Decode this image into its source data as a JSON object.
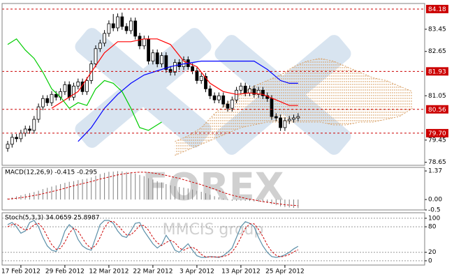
{
  "chart_data": [
    {
      "type": "candlestick",
      "up_color": "#ffffff",
      "down_color": "#000000",
      "xlim": [
        -1.27,
        94.76
      ],
      "ylim": [
        78.54,
        84.38
      ],
      "yticks": [
        83.45,
        82.65,
        81.05,
        79.45,
        78.65
      ],
      "levels": [
        84.18,
        81.93,
        80.56,
        {
          "value": 79.7,
          "label": "79.70"
        }
      ],
      "level_color": "#cc0000",
      "ohlc": [
        [
          79.15,
          79.42,
          79.03,
          79.3
        ],
        [
          79.3,
          79.67,
          79.18,
          79.55
        ],
        [
          79.55,
          79.67,
          79.38,
          79.5
        ],
        [
          79.5,
          79.82,
          79.38,
          79.7
        ],
        [
          79.7,
          79.97,
          79.58,
          79.85
        ],
        [
          79.85,
          79.97,
          79.68,
          79.8
        ],
        [
          79.8,
          80.32,
          79.68,
          80.2
        ],
        [
          80.2,
          80.77,
          80.08,
          80.65
        ],
        [
          80.65,
          81.07,
          80.53,
          80.95
        ],
        [
          80.95,
          81.07,
          80.68,
          80.8
        ],
        [
          80.8,
          81.22,
          80.68,
          81.1
        ],
        [
          81.1,
          81.22,
          80.88,
          81.0
        ],
        [
          81.0,
          81.32,
          80.88,
          81.2
        ],
        [
          81.2,
          81.57,
          81.08,
          81.45
        ],
        [
          81.45,
          81.57,
          80.88,
          81.0
        ],
        [
          81.0,
          81.52,
          80.88,
          81.4
        ],
        [
          81.4,
          81.67,
          81.28,
          81.55
        ],
        [
          81.55,
          81.67,
          81.08,
          81.2
        ],
        [
          81.2,
          81.72,
          81.08,
          81.6
        ],
        [
          81.6,
          82.32,
          81.48,
          82.2
        ],
        [
          82.2,
          82.87,
          82.08,
          82.75
        ],
        [
          82.75,
          83.07,
          82.63,
          82.95
        ],
        [
          82.95,
          83.42,
          82.83,
          83.3
        ],
        [
          83.3,
          83.77,
          83.18,
          83.65
        ],
        [
          83.65,
          84.0,
          83.38,
          83.5
        ],
        [
          83.5,
          84.02,
          83.38,
          83.9
        ],
        [
          83.9,
          84.05,
          83.43,
          83.55
        ],
        [
          83.55,
          83.67,
          83.28,
          83.4
        ],
        [
          83.4,
          83.87,
          83.28,
          83.75
        ],
        [
          83.75,
          83.87,
          83.08,
          83.2
        ],
        [
          83.2,
          83.32,
          82.73,
          82.85
        ],
        [
          82.85,
          83.22,
          82.73,
          83.1
        ],
        [
          83.1,
          83.22,
          82.18,
          82.3
        ],
        [
          82.3,
          82.72,
          82.18,
          82.6
        ],
        [
          82.6,
          82.72,
          82.08,
          82.2
        ],
        [
          82.2,
          82.62,
          82.08,
          82.5
        ],
        [
          82.5,
          82.62,
          81.88,
          82.0
        ],
        [
          82.0,
          82.12,
          81.78,
          81.9
        ],
        [
          81.9,
          82.37,
          81.78,
          82.25
        ],
        [
          82.25,
          82.37,
          81.98,
          82.1
        ],
        [
          82.1,
          82.47,
          81.98,
          82.35
        ],
        [
          82.35,
          82.47,
          81.98,
          82.1
        ],
        [
          82.1,
          82.22,
          81.83,
          81.95
        ],
        [
          81.95,
          82.07,
          81.48,
          81.6
        ],
        [
          81.6,
          81.87,
          81.48,
          81.75
        ],
        [
          81.75,
          81.87,
          81.18,
          81.3
        ],
        [
          81.3,
          81.42,
          80.93,
          81.05
        ],
        [
          81.05,
          81.17,
          80.78,
          80.9
        ],
        [
          80.9,
          81.17,
          80.78,
          81.05
        ],
        [
          81.05,
          81.17,
          80.63,
          80.75
        ],
        [
          80.75,
          80.87,
          80.48,
          80.6
        ],
        [
          80.6,
          81.02,
          80.48,
          80.9
        ],
        [
          80.9,
          81.37,
          80.78,
          81.25
        ],
        [
          81.25,
          81.52,
          81.13,
          81.4
        ],
        [
          81.4,
          81.52,
          81.03,
          81.15
        ],
        [
          81.15,
          81.42,
          81.03,
          81.3
        ],
        [
          81.3,
          81.42,
          80.98,
          81.1
        ],
        [
          81.1,
          81.37,
          80.98,
          81.25
        ],
        [
          81.25,
          81.37,
          80.93,
          81.05
        ],
        [
          81.05,
          81.17,
          80.83,
          80.95
        ],
        [
          80.95,
          81.07,
          80.18,
          80.3
        ],
        [
          80.3,
          80.42,
          80.13,
          80.25
        ],
        [
          80.25,
          80.37,
          79.78,
          79.9
        ],
        [
          79.9,
          80.27,
          79.78,
          80.15
        ],
        [
          80.15,
          80.32,
          80.03,
          80.2
        ],
        [
          80.2,
          80.37,
          80.08,
          80.25
        ],
        [
          80.25,
          80.42,
          80.13,
          80.3
        ]
      ],
      "lines": [
        {
          "color": "#ff0000",
          "x": [
            10,
            13,
            16,
            19,
            22,
            25,
            28,
            31,
            34,
            37,
            40,
            43,
            46,
            49,
            52,
            55,
            58,
            61,
            64,
            66
          ],
          "values": [
            80.6,
            80.9,
            81.2,
            81.9,
            82.6,
            83.0,
            83.0,
            83.1,
            83.1,
            82.9,
            82.3,
            82.1,
            81.5,
            81.2,
            81.1,
            81.15,
            81.1,
            80.9,
            80.7,
            80.7
          ]
        },
        {
          "color": "#0000ff",
          "x": [
            16,
            19,
            22,
            25,
            28,
            31,
            34,
            37,
            40,
            44,
            48,
            52,
            56,
            59,
            62,
            64,
            66
          ],
          "values": [
            79.4,
            79.9,
            80.6,
            81.1,
            81.5,
            81.8,
            81.95,
            82.1,
            82.2,
            82.3,
            82.3,
            82.3,
            82.3,
            82.0,
            81.6,
            81.5,
            81.5
          ]
        },
        {
          "color": "#00cc00",
          "x": [
            0,
            2,
            4,
            6,
            8,
            10,
            12,
            14,
            16,
            18,
            20,
            22,
            24,
            26,
            28,
            30,
            32,
            35
          ],
          "values": [
            82.9,
            83.1,
            82.7,
            82.4,
            81.9,
            81.3,
            81.0,
            80.6,
            80.8,
            80.7,
            81.3,
            81.6,
            81.5,
            81.2,
            80.6,
            79.9,
            79.8,
            80.1
          ]
        }
      ],
      "cloud": {
        "color": "#d9a066",
        "x": [
          38,
          41,
          44,
          47,
          50,
          53,
          56,
          59,
          62,
          65,
          68,
          71,
          74,
          77,
          80,
          83,
          86,
          89,
          92
        ],
        "span_a": [
          78.9,
          79.1,
          79.3,
          79.5,
          79.7,
          79.9,
          80.0,
          80.1,
          80.1,
          80.1,
          80.1,
          80.1,
          80.0,
          80.0,
          80.1,
          80.1,
          80.2,
          80.3,
          80.6
        ],
        "span_b": [
          79.4,
          79.6,
          79.9,
          80.4,
          80.8,
          81.1,
          81.4,
          81.6,
          81.8,
          82.1,
          82.3,
          82.4,
          82.3,
          82.1,
          81.9,
          81.7,
          81.6,
          81.4,
          81.2
        ]
      }
    },
    {
      "type": "macd",
      "title": "MACD(12,26,9) -0.415 -0.295",
      "xlim": [
        -1.27,
        94.76
      ],
      "ylim": [
        -0.5,
        1.54
      ],
      "yticks": [
        1.37,
        {
          "value": 0,
          "label": "0.00"
        },
        -0.5
      ],
      "color": "#808080",
      "signal_color": "#cc0000",
      "values": [
        0.05,
        0.1,
        0.15,
        0.2,
        0.26,
        0.31,
        0.36,
        0.42,
        0.5,
        0.56,
        0.62,
        0.68,
        0.74,
        0.8,
        0.85,
        0.88,
        0.93,
        0.97,
        1.0,
        1.06,
        1.14,
        1.22,
        1.28,
        1.33,
        1.34,
        1.36,
        1.35,
        1.32,
        1.3,
        1.25,
        1.18,
        1.12,
        1.02,
        0.96,
        0.88,
        0.82,
        0.74,
        0.68,
        0.64,
        0.6,
        0.57,
        0.53,
        0.48,
        0.42,
        0.37,
        0.3,
        0.23,
        0.16,
        0.11,
        0.04,
        -0.03,
        -0.06,
        -0.06,
        -0.05,
        -0.06,
        -0.07,
        -0.09,
        -0.11,
        -0.13,
        -0.16,
        -0.22,
        -0.27,
        -0.33,
        -0.36,
        -0.38,
        -0.4,
        -0.415
      ],
      "signal": [
        0.02,
        0.04,
        0.06,
        0.09,
        0.12,
        0.16,
        0.19,
        0.23,
        0.28,
        0.33,
        0.38,
        0.43,
        0.48,
        0.54,
        0.6,
        0.66,
        0.71,
        0.76,
        0.81,
        0.86,
        0.92,
        0.98,
        1.03,
        1.08,
        1.13,
        1.18,
        1.22,
        1.25,
        1.28,
        1.3,
        1.31,
        1.31,
        1.3,
        1.27,
        1.24,
        1.2,
        1.16,
        1.11,
        1.06,
        1.01,
        0.95,
        0.89,
        0.83,
        0.77,
        0.71,
        0.64,
        0.57,
        0.5,
        0.42,
        0.34,
        0.27,
        0.21,
        0.16,
        0.11,
        0.06,
        0.02,
        -0.02,
        -0.06,
        -0.1,
        -0.13,
        -0.16,
        -0.19,
        -0.22,
        -0.25,
        -0.27,
        -0.28,
        -0.295
      ]
    },
    {
      "type": "stochastic",
      "title": "Stoch(5,3,3) 34.0659 25.8987",
      "xlim": [
        -1.27,
        94.76
      ],
      "ylim": [
        -10,
        113
      ],
      "yticks": [
        100,
        80,
        20,
        0
      ],
      "grid": true,
      "k_color": "#5b8fa8",
      "d_color": "#cc0000",
      "k": [
        85,
        90,
        80,
        65,
        70,
        90,
        95,
        80,
        55,
        35,
        25,
        22,
        40,
        70,
        85,
        75,
        50,
        35,
        28,
        25,
        55,
        85,
        95,
        95,
        88,
        70,
        58,
        55,
        70,
        88,
        90,
        70,
        55,
        40,
        30,
        38,
        60,
        45,
        25,
        20,
        30,
        40,
        25,
        12,
        8,
        8,
        10,
        9,
        8,
        12,
        20,
        30,
        55,
        80,
        92,
        88,
        80,
        55,
        35,
        20,
        10,
        8,
        10,
        14,
        20,
        28,
        34.0659
      ],
      "d": [
        80,
        85,
        87,
        78,
        72,
        75,
        85,
        88,
        77,
        57,
        38,
        27,
        29,
        44,
        65,
        77,
        70,
        53,
        38,
        29,
        36,
        55,
        78,
        92,
        93,
        84,
        72,
        61,
        61,
        71,
        83,
        83,
        72,
        55,
        42,
        36,
        43,
        48,
        43,
        30,
        25,
        30,
        32,
        26,
        15,
        9,
        9,
        9,
        9,
        10,
        13,
        21,
        35,
        55,
        76,
        87,
        87,
        74,
        57,
        37,
        22,
        13,
        9,
        11,
        15,
        21,
        25.8987
      ],
      "xticks": [
        {
          "value": 3,
          "label": "17 Feb 2012"
        },
        {
          "value": 13,
          "label": "29 Feb 2012"
        },
        {
          "value": 23,
          "label": "12 Mar 2012"
        },
        {
          "value": 33,
          "label": "22 Mar 2012"
        },
        {
          "value": 43,
          "label": "3 Apr 2012"
        },
        {
          "value": 53,
          "label": "13 Apr 2012"
        },
        {
          "value": 63,
          "label": "25 Apr 2012"
        }
      ]
    }
  ],
  "watermark": {
    "logo": "FOREX",
    "caption": "MMCIS group"
  }
}
